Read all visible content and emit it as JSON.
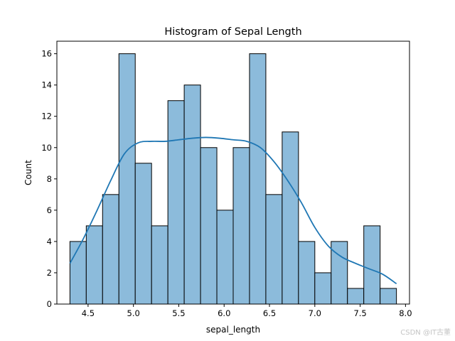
{
  "chart_data": {
    "type": "bar",
    "title": "Histogram of Sepal Length",
    "xlabel": "sepal_length",
    "ylabel": "Count",
    "xlim": [
      4.156,
      8.044
    ],
    "ylim": [
      0,
      16.8
    ],
    "xticks": [
      4.5,
      5.0,
      5.5,
      6.0,
      6.5,
      7.0,
      7.5,
      8.0
    ],
    "xtick_labels": [
      "4.5",
      "5.0",
      "5.5",
      "6.0",
      "6.5",
      "7.0",
      "7.5",
      "8.0"
    ],
    "yticks": [
      0,
      2,
      4,
      6,
      8,
      10,
      12,
      14,
      16
    ],
    "ytick_labels": [
      "0",
      "2",
      "4",
      "6",
      "8",
      "10",
      "12",
      "14",
      "16"
    ],
    "bin_start": 4.3,
    "bin_width": 0.18,
    "counts": [
      4,
      5,
      7,
      16,
      9,
      5,
      13,
      14,
      10,
      6,
      10,
      16,
      7,
      11,
      4,
      2,
      4,
      1,
      5,
      1
    ],
    "grid": false,
    "bar_color": "#8cbbdb",
    "bar_edge_color": "#000000",
    "kde": {
      "color": "#1f77b4",
      "x": [
        4.3,
        4.45,
        4.6,
        4.75,
        4.9,
        5.05,
        5.2,
        5.35,
        5.5,
        5.65,
        5.8,
        5.95,
        6.1,
        6.25,
        6.4,
        6.55,
        6.7,
        6.85,
        7.0,
        7.15,
        7.3,
        7.45,
        7.6,
        7.75,
        7.9
      ],
      "y": [
        2.6,
        4.2,
        6.0,
        7.9,
        9.6,
        10.3,
        10.4,
        10.4,
        10.5,
        10.6,
        10.65,
        10.6,
        10.5,
        10.4,
        10.0,
        9.1,
        7.9,
        6.5,
        4.9,
        3.7,
        3.0,
        2.6,
        2.25,
        1.9,
        1.3
      ]
    }
  },
  "watermark": "CSDN @IT古董"
}
